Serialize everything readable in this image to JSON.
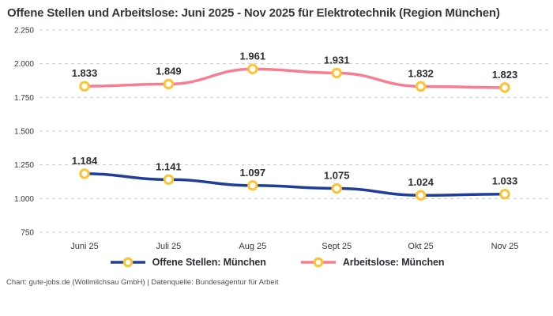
{
  "header": {
    "title": "Offene Stellen und Arbeitslose: Juni 2025 - Nov 2025 für Elektrotechnik (Region München)"
  },
  "chart_data": {
    "type": "line",
    "categories": [
      "Juni 25",
      "Juli 25",
      "Aug 25",
      "Sept 25",
      "Okt 25",
      "Nov 25"
    ],
    "series": [
      {
        "name": "Offene Stellen: München",
        "values": [
          1184,
          1141,
          1097,
          1075,
          1024,
          1033
        ],
        "labels": [
          "1.184",
          "1.141",
          "1.097",
          "1.075",
          "1.024",
          "1.033"
        ],
        "color": "#1f3d99"
      },
      {
        "name": "Arbeitslose: München",
        "values": [
          1833,
          1849,
          1961,
          1931,
          1832,
          1823
        ],
        "labels": [
          "1.833",
          "1.849",
          "1.961",
          "1.931",
          "1.832",
          "1.823"
        ],
        "color": "#f97d92"
      }
    ],
    "y_ticks": [
      750,
      1000,
      1250,
      1500,
      1750,
      2000,
      2250
    ],
    "y_tick_labels": [
      "750",
      "1.000",
      "1.250",
      "1.500",
      "1.750",
      "2.000",
      "2.250"
    ],
    "ylim": [
      750,
      2250
    ],
    "xlabel": "",
    "ylabel": "",
    "grid": "horizontal-dashed",
    "gridline_color": "#c8cbce",
    "marker": {
      "stroke": "#ffc233",
      "fill": "#ffffff"
    },
    "legend_position": "bottom"
  },
  "footer": {
    "attribution": "Chart: gute-jobs.de (Wollmilchsau GmbH) | Datenquelle: Bundesagentur für Arbeit"
  }
}
